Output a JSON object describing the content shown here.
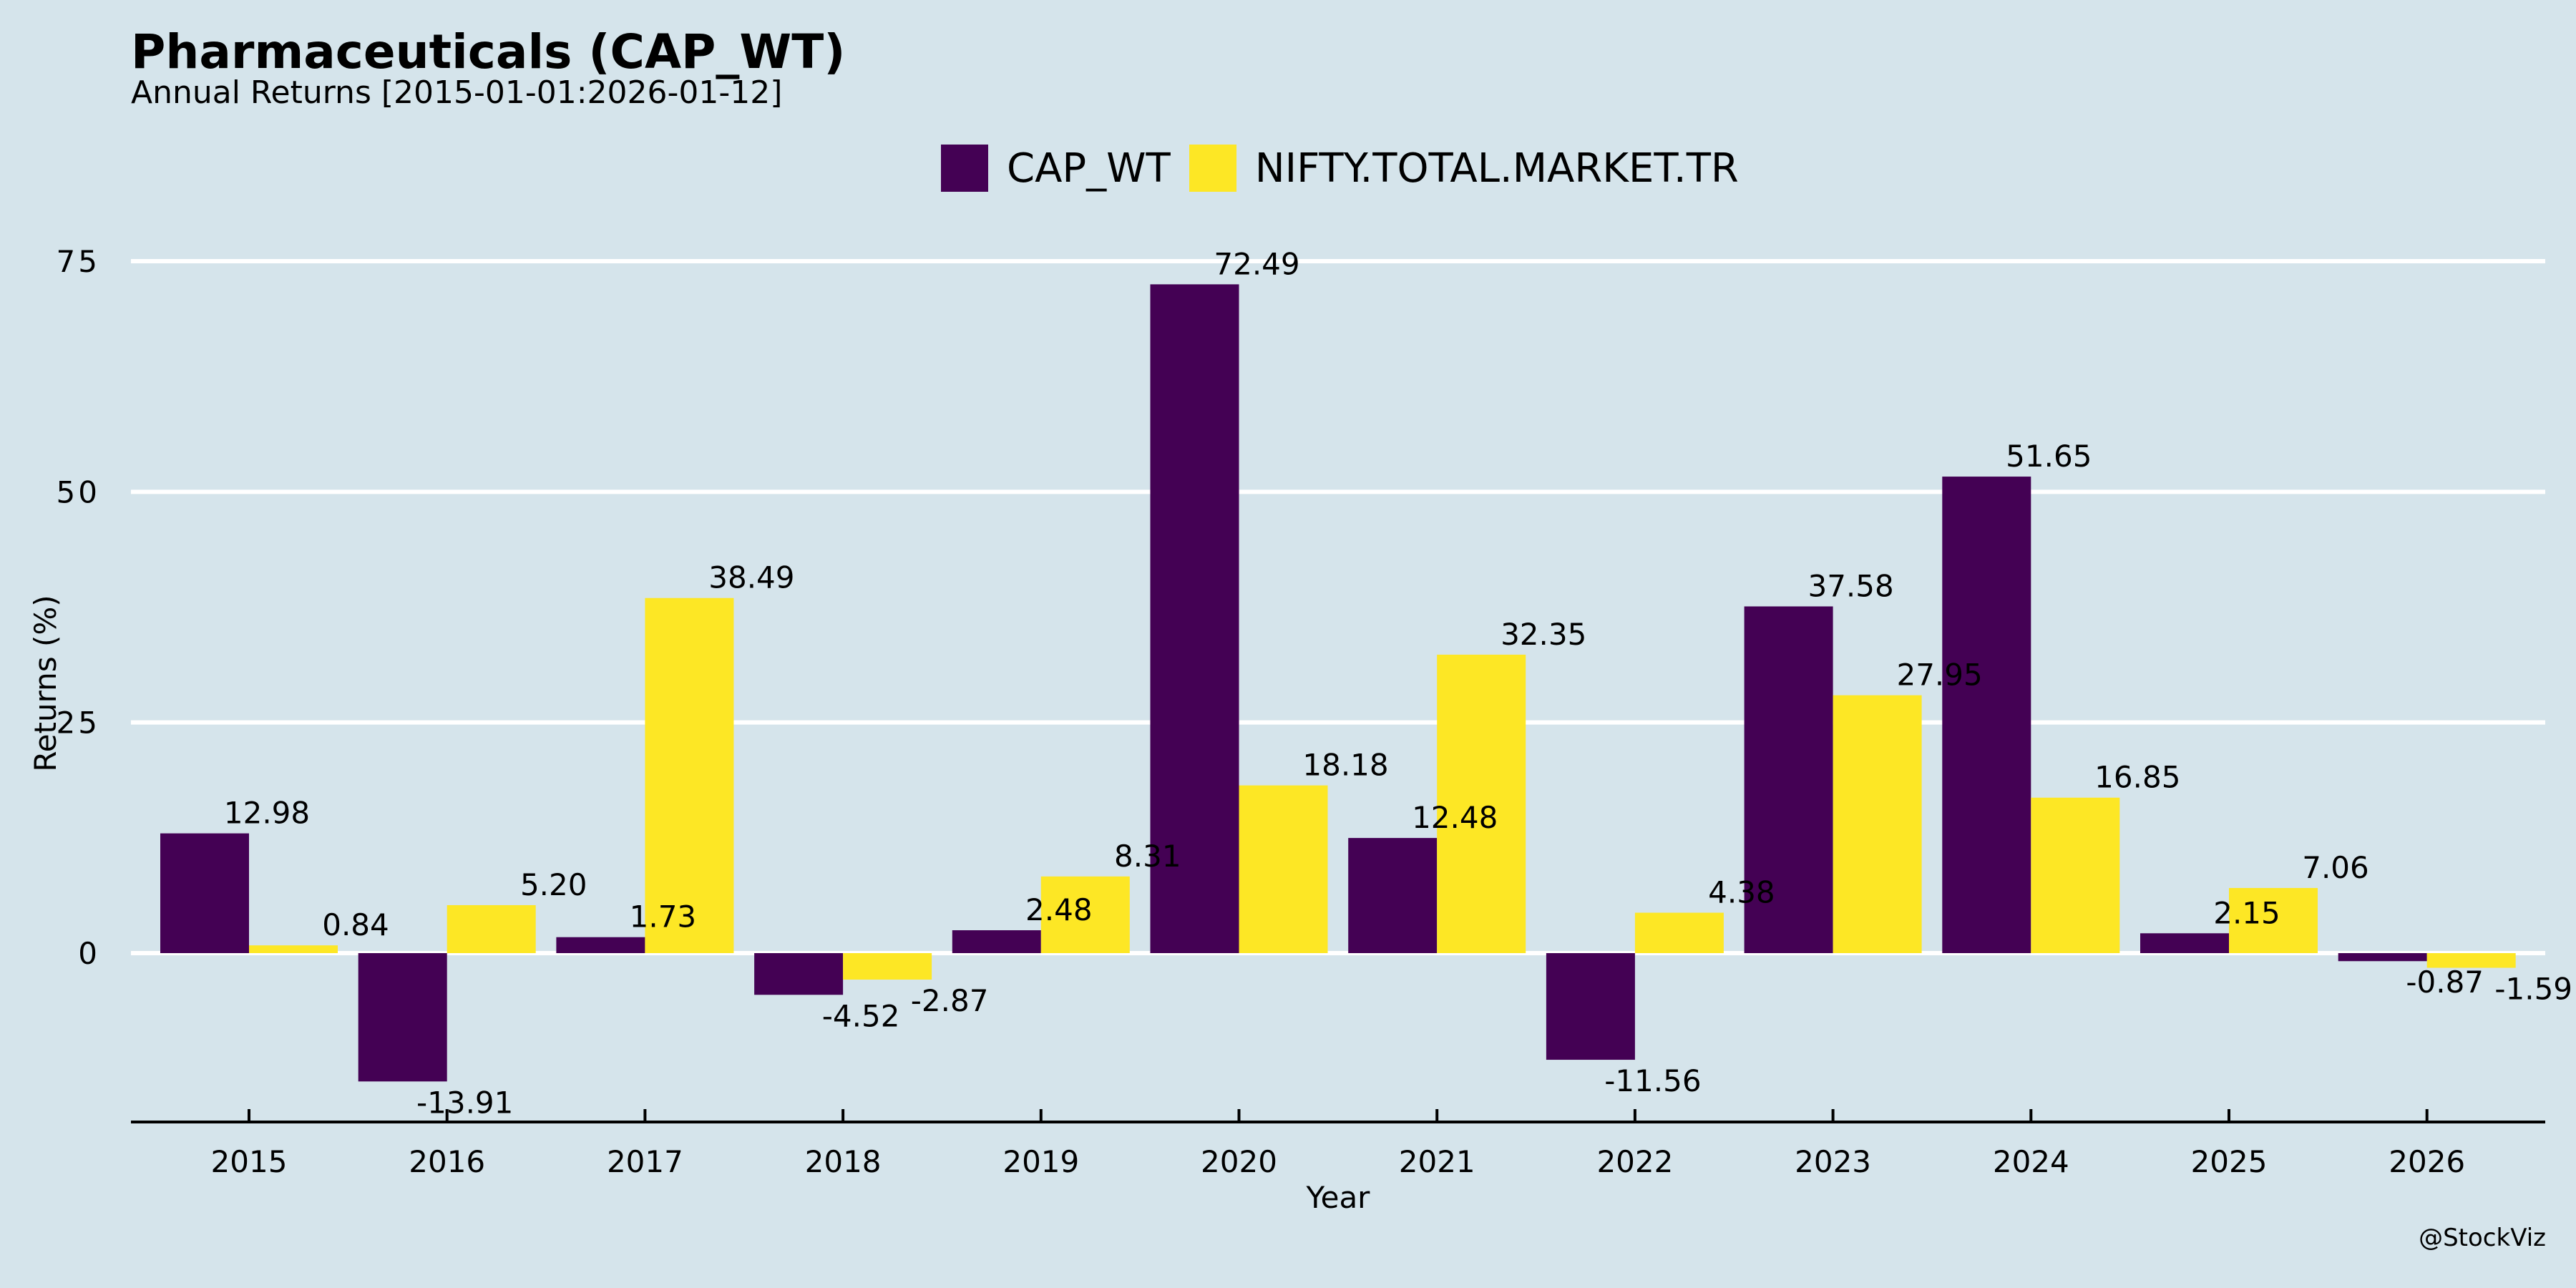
{
  "chart_data": {
    "type": "bar",
    "title": "Pharmaceuticals (CAP_WT)",
    "subtitle": "Annual Returns [2015-01-01:2026-01-12]",
    "xlabel": "Year",
    "ylabel": "Returns (%)",
    "ylim": [
      -18.5,
      80
    ],
    "yticks": [
      0,
      25,
      50,
      75
    ],
    "grid": "horizontal",
    "legend_position": "top-center",
    "categories": [
      "2015",
      "2016",
      "2017",
      "2018",
      "2019",
      "2020",
      "2021",
      "2022",
      "2023",
      "2024",
      "2025",
      "2026"
    ],
    "series": [
      {
        "name": "CAP_WT",
        "color": "#440154",
        "values": [
          12.98,
          -13.91,
          1.73,
          -4.52,
          2.48,
          72.49,
          12.48,
          -11.56,
          37.58,
          51.65,
          2.15,
          -0.87
        ],
        "labels": [
          "12.98",
          "-13.91",
          "1.73",
          "-4.52",
          "2.48",
          "72.49",
          "12.48",
          "-11.56",
          "37.58",
          "51.65",
          "2.15",
          "-0.87"
        ]
      },
      {
        "name": "NIFTY.TOTAL.MARKET.TR",
        "color": "#fde725",
        "values": [
          0.84,
          5.2,
          38.49,
          -2.87,
          8.31,
          18.18,
          32.35,
          4.38,
          27.95,
          16.85,
          7.06,
          -1.59
        ],
        "labels": [
          "0.84",
          "5.20",
          "38.49",
          "-2.87",
          "8.31",
          "18.18",
          "32.35",
          "4.38",
          "27.95",
          "16.85",
          "7.06",
          "-1.59"
        ]
      }
    ]
  },
  "watermark": "@StockViz",
  "colors": {
    "background": "#d5e4eb",
    "grid": "#ffffff",
    "text": "#000000"
  }
}
